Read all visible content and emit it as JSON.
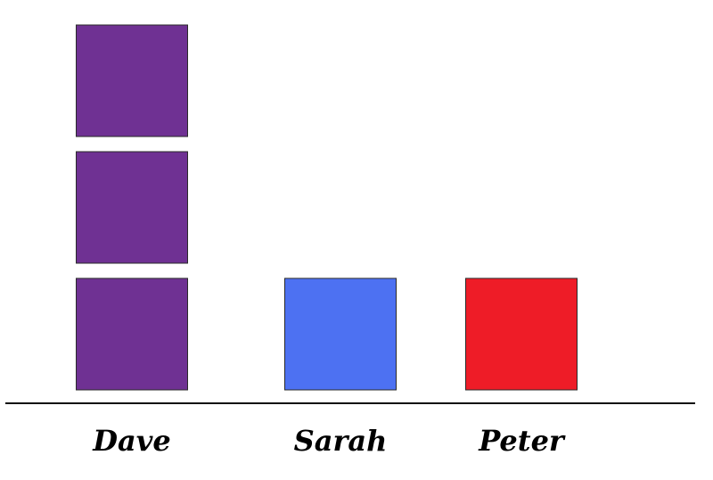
{
  "chart_data": {
    "type": "bar",
    "style": "stacked-unit-blocks",
    "categories": [
      "Dave",
      "Sarah",
      "Peter"
    ],
    "values": [
      3,
      1,
      1
    ],
    "colors": [
      "#6f3193",
      "#4d71f2",
      "#ee1c27"
    ],
    "title": "",
    "xlabel": "",
    "ylabel": "",
    "grid": false,
    "legend": "none"
  }
}
